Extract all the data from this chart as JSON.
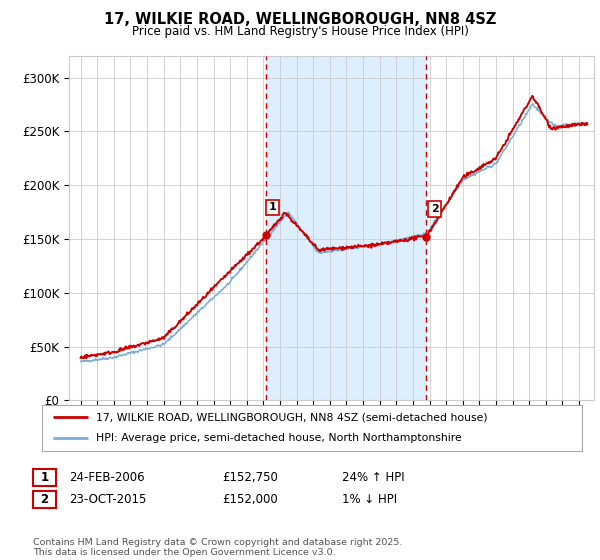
{
  "title": "17, WILKIE ROAD, WELLINGBOROUGH, NN8 4SZ",
  "subtitle": "Price paid vs. HM Land Registry's House Price Index (HPI)",
  "legend_line1": "17, WILKIE ROAD, WELLINGBOROUGH, NN8 4SZ (semi-detached house)",
  "legend_line2": "HPI: Average price, semi-detached house, North Northamptonshire",
  "transaction1_date": "24-FEB-2006",
  "transaction1_price": "£152,750",
  "transaction1_hpi": "24% ↑ HPI",
  "transaction2_date": "23-OCT-2015",
  "transaction2_price": "£152,000",
  "transaction2_hpi": "1% ↓ HPI",
  "footer": "Contains HM Land Registry data © Crown copyright and database right 2025.\nThis data is licensed under the Open Government Licence v3.0.",
  "red_color": "#cc0000",
  "blue_color": "#7aadd4",
  "shade_color": "#ddeeff",
  "vline_color": "#cc0000",
  "background_color": "#ffffff",
  "grid_color": "#cccccc",
  "ylim": [
    0,
    320000
  ],
  "yticks": [
    0,
    50000,
    100000,
    150000,
    200000,
    250000,
    300000
  ],
  "ytick_labels": [
    "£0",
    "£50K",
    "£100K",
    "£150K",
    "£200K",
    "£250K",
    "£300K"
  ],
  "transaction1_year": 2006.15,
  "transaction2_year": 2015.81
}
